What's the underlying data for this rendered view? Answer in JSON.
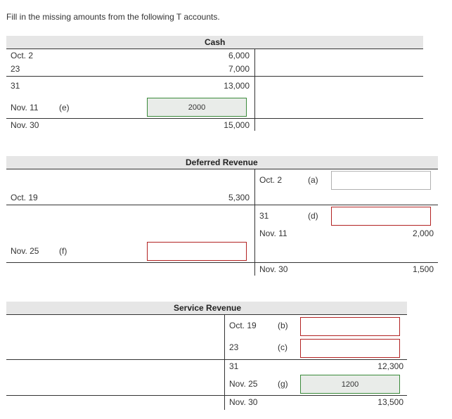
{
  "instruction": "Fill in the missing amounts from the following T accounts.",
  "cash": {
    "title": "Cash",
    "rows": [
      {
        "date": "Oct. 2",
        "amount": "6,000"
      },
      {
        "date": "23",
        "amount": "7,000"
      },
      {
        "date": "31",
        "amount": "13,000"
      },
      {
        "date": "Nov. 11",
        "letter": "(e)",
        "input": "2000"
      },
      {
        "date": "Nov. 30",
        "amount": "15,000"
      }
    ]
  },
  "deferred": {
    "title": "Deferred Revenue",
    "left": [
      {
        "date": "Oct. 19",
        "amount": "5,300"
      },
      {
        "date": "Nov. 25",
        "letter": "(f)",
        "input": ""
      }
    ],
    "right": [
      {
        "date": "Oct. 2",
        "letter": "(a)",
        "input": ""
      },
      {
        "date": "31",
        "letter": "(d)",
        "input": ""
      },
      {
        "date": "Nov. 11",
        "amount": "2,000"
      },
      {
        "date": "Nov. 30",
        "amount": "1,500"
      }
    ]
  },
  "service": {
    "title": "Service Revenue",
    "right": [
      {
        "date": "Oct. 19",
        "letter": "(b)",
        "input": ""
      },
      {
        "date": "23",
        "letter": "(c)",
        "input": ""
      },
      {
        "date": "31",
        "amount": "12,300"
      },
      {
        "date": "Nov. 25",
        "letter": "(g)",
        "input": "1200"
      },
      {
        "date": "Nov. 30",
        "amount": "13,500"
      }
    ]
  }
}
